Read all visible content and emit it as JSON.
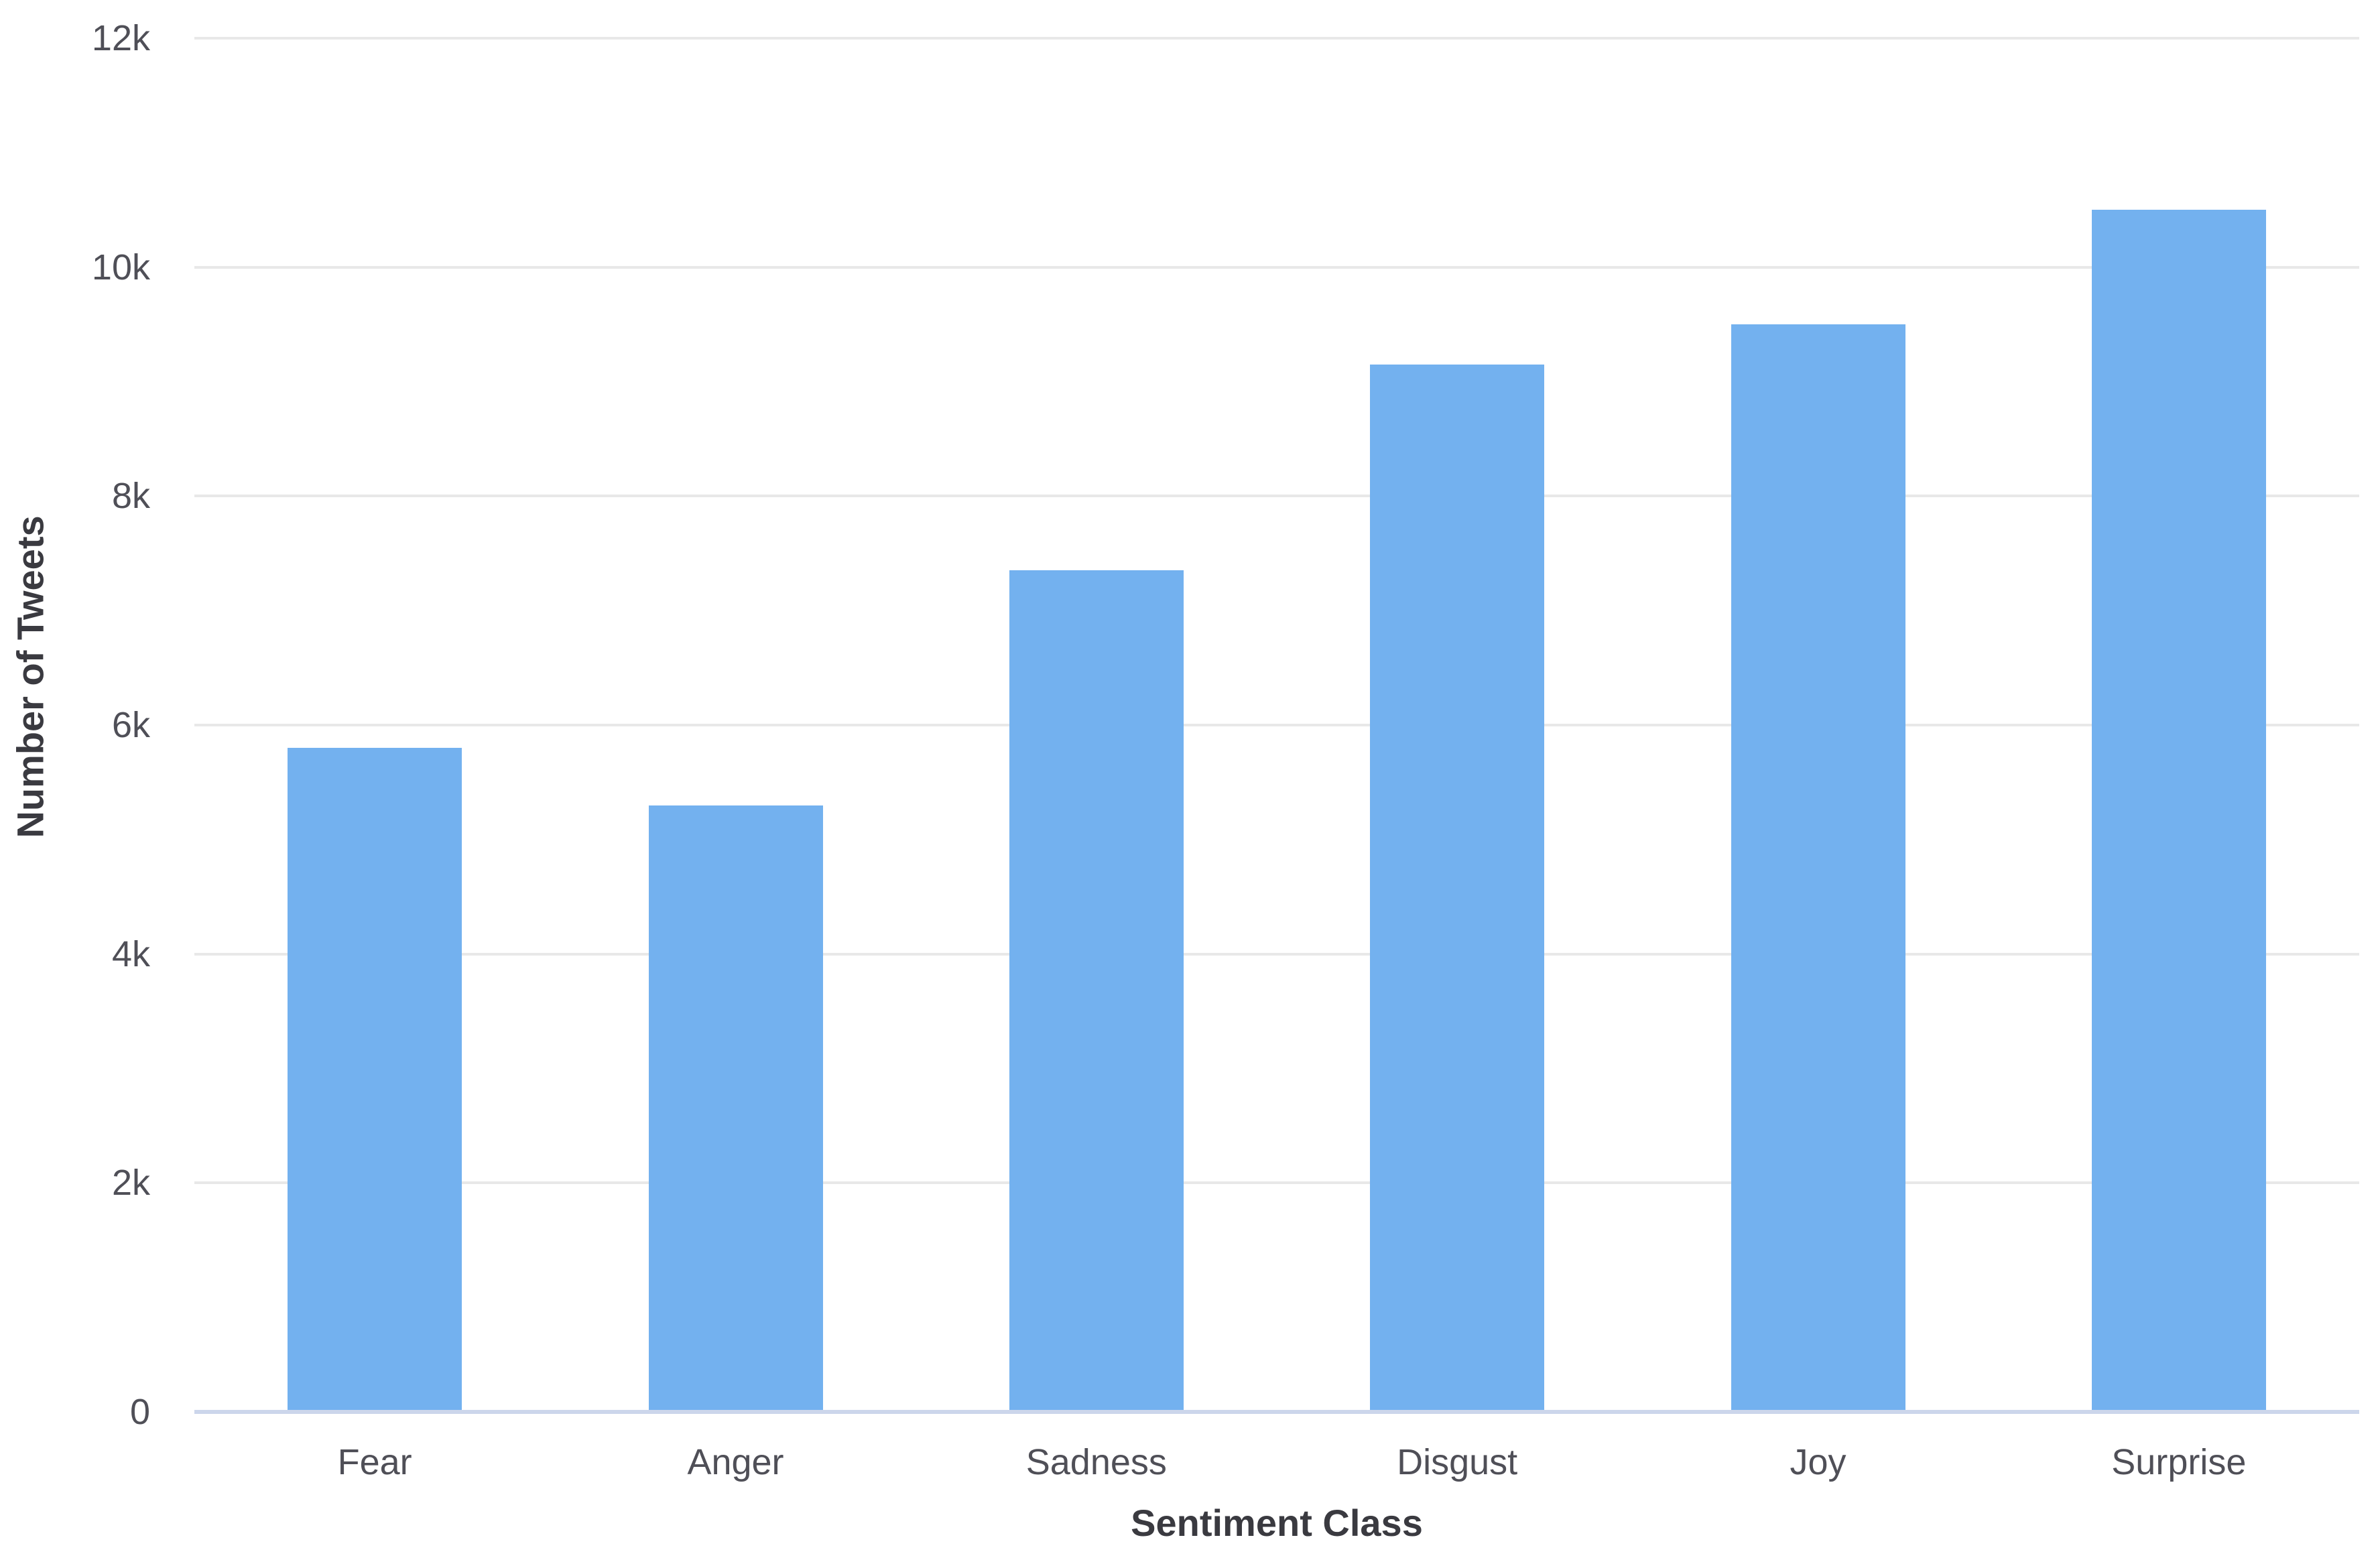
{
  "chart_data": {
    "type": "bar",
    "title": "",
    "xlabel": "Sentiment Class",
    "ylabel": "Number of Tweets",
    "categories": [
      "Fear",
      "Anger",
      "Sadness",
      "Disgust",
      "Joy",
      "Surprise"
    ],
    "values": [
      5800,
      5300,
      7350,
      9150,
      9500,
      10500
    ],
    "ylim": [
      0,
      12000
    ],
    "ytick_step": 2000,
    "ytick_labels": [
      "0",
      "2k",
      "4k",
      "6k",
      "8k",
      "10k",
      "12k"
    ],
    "grid": true,
    "legend": "none",
    "colors": {
      "bar": "#73B1EF",
      "gridline": "#E8E8E8",
      "axis_line": "#CCD6EB",
      "tick_label": "#4F4F57",
      "axis_title": "#3A3A40",
      "background": "#FFFFFF"
    }
  }
}
